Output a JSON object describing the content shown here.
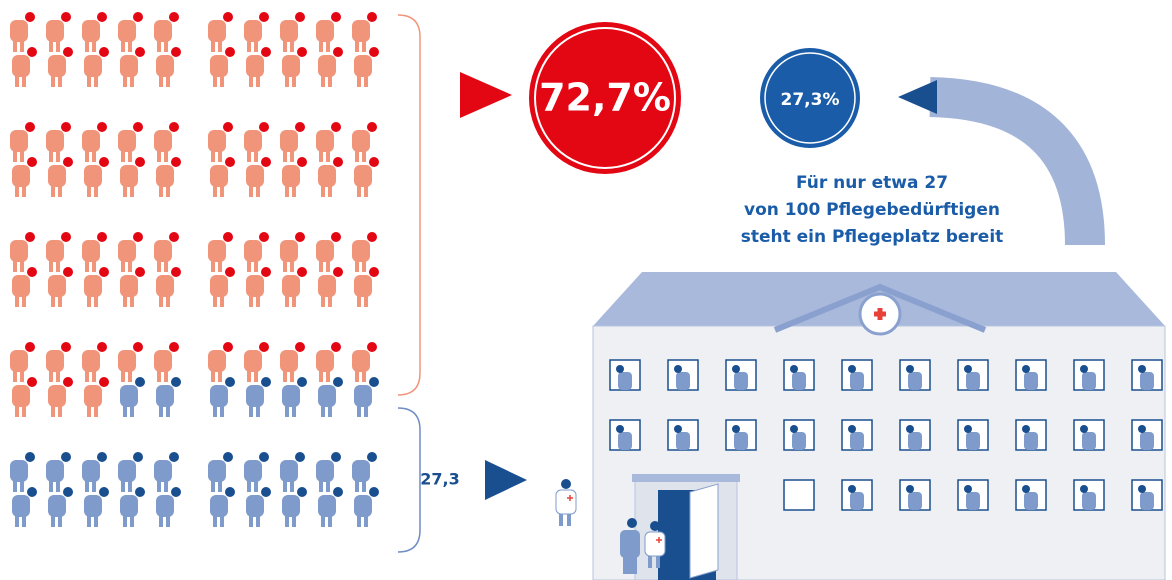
{
  "labels": {
    "main_percent": "72,7%",
    "minor_percent": "27,3%",
    "minor_count": "27,3"
  },
  "caption": [
    "Für nur etwa 27",
    "von 100 Pflegebedürftigen",
    "steht ein Pflegeplatz bereit"
  ]
}
